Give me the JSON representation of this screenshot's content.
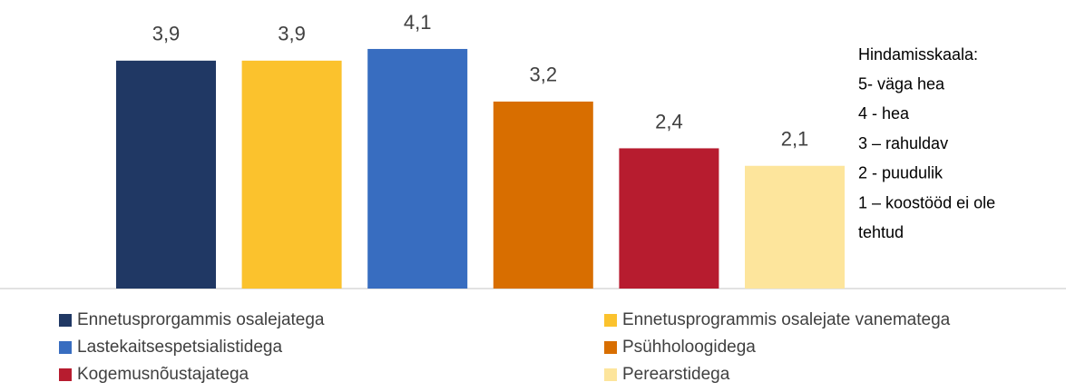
{
  "chart_data": {
    "type": "bar",
    "categories": [
      null
    ],
    "series": [
      {
        "name": "Ennetusprorgammis osalejatega",
        "color": "#203864",
        "values": [
          3.9
        ],
        "value_labels": [
          "3,9"
        ]
      },
      {
        "name": "Ennetusprogrammis osalejate vanematega",
        "color": "#fbc22d",
        "values": [
          3.9
        ],
        "value_labels": [
          "3,9"
        ]
      },
      {
        "name": "Lastekaitsespetsialistidega",
        "color": "#386dc0",
        "values": [
          4.1
        ],
        "value_labels": [
          "4,1"
        ]
      },
      {
        "name": "Psühholoogidega",
        "color": "#d86e00",
        "values": [
          3.2
        ],
        "value_labels": [
          "3,2"
        ]
      },
      {
        "name": "Kogemusnõustajatega",
        "color": "#b71c2f",
        "values": [
          2.4
        ],
        "value_labels": [
          "2,4"
        ]
      },
      {
        "name": "Perearstidega",
        "color": "#fde59c",
        "values": [
          2.1
        ],
        "value_labels": [
          "2,1"
        ]
      }
    ],
    "ylim": [
      0,
      5
    ],
    "annotation": [
      "Hindamisskaala:",
      "5- väga hea",
      "4 - hea",
      "3 – rahuldav",
      "2 - puudulik",
      "1 – koostööd ei ole",
      "tehtud"
    ]
  }
}
